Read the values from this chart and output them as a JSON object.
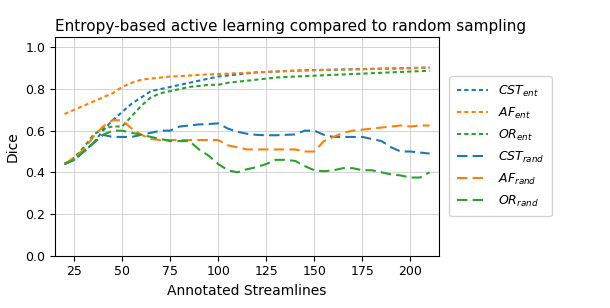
{
  "title": "Entropy-based active learning compared to random sampling",
  "xlabel": "Annotated Streamlines",
  "ylabel": "Dice",
  "xlim": [
    15,
    215
  ],
  "ylim": [
    0.0,
    1.05
  ],
  "xticks": [
    25,
    50,
    75,
    100,
    125,
    150,
    175,
    200
  ],
  "yticks": [
    0.0,
    0.2,
    0.4,
    0.6,
    0.8,
    1.0
  ],
  "x": [
    20,
    25,
    30,
    35,
    40,
    45,
    50,
    55,
    60,
    65,
    70,
    75,
    80,
    85,
    90,
    95,
    100,
    105,
    110,
    115,
    120,
    125,
    130,
    135,
    140,
    145,
    150,
    155,
    160,
    165,
    170,
    175,
    180,
    185,
    190,
    195,
    200,
    205,
    210
  ],
  "CST_ent": [
    0.44,
    0.46,
    0.5,
    0.54,
    0.6,
    0.65,
    0.69,
    0.73,
    0.76,
    0.79,
    0.8,
    0.81,
    0.82,
    0.83,
    0.84,
    0.85,
    0.86,
    0.865,
    0.87,
    0.875,
    0.88,
    0.882,
    0.884,
    0.886,
    0.888,
    0.89,
    0.891,
    0.892,
    0.893,
    0.894,
    0.895,
    0.896,
    0.897,
    0.898,
    0.899,
    0.9,
    0.901,
    0.902,
    0.904
  ],
  "AF_ent": [
    0.68,
    0.7,
    0.72,
    0.74,
    0.76,
    0.78,
    0.81,
    0.83,
    0.845,
    0.85,
    0.855,
    0.86,
    0.862,
    0.865,
    0.868,
    0.87,
    0.872,
    0.874,
    0.876,
    0.878,
    0.88,
    0.882,
    0.884,
    0.886,
    0.888,
    0.889,
    0.89,
    0.891,
    0.892,
    0.893,
    0.894,
    0.895,
    0.896,
    0.897,
    0.898,
    0.899,
    0.9,
    0.901,
    0.902
  ],
  "OR_ent": [
    0.44,
    0.47,
    0.52,
    0.58,
    0.61,
    0.62,
    0.62,
    0.67,
    0.72,
    0.76,
    0.78,
    0.79,
    0.8,
    0.81,
    0.815,
    0.82,
    0.82,
    0.83,
    0.835,
    0.84,
    0.845,
    0.85,
    0.855,
    0.858,
    0.86,
    0.862,
    0.864,
    0.866,
    0.868,
    0.87,
    0.872,
    0.874,
    0.876,
    0.878,
    0.88,
    0.882,
    0.884,
    0.886,
    0.888
  ],
  "CST_rand": [
    0.44,
    0.46,
    0.5,
    0.54,
    0.58,
    0.57,
    0.57,
    0.57,
    0.58,
    0.59,
    0.6,
    0.6,
    0.62,
    0.625,
    0.63,
    0.632,
    0.635,
    0.61,
    0.595,
    0.585,
    0.58,
    0.578,
    0.578,
    0.58,
    0.582,
    0.6,
    0.6,
    0.58,
    0.57,
    0.57,
    0.57,
    0.57,
    0.56,
    0.55,
    0.52,
    0.5,
    0.5,
    0.495,
    0.49
  ],
  "AF_rand": [
    0.44,
    0.47,
    0.51,
    0.57,
    0.62,
    0.65,
    0.65,
    0.61,
    0.58,
    0.56,
    0.555,
    0.555,
    0.555,
    0.555,
    0.555,
    0.555,
    0.555,
    0.53,
    0.52,
    0.51,
    0.51,
    0.51,
    0.51,
    0.51,
    0.51,
    0.5,
    0.5,
    0.55,
    0.57,
    0.59,
    0.6,
    0.605,
    0.61,
    0.615,
    0.62,
    0.625,
    0.62,
    0.625,
    0.625
  ],
  "OR_rand": [
    0.44,
    0.46,
    0.5,
    0.54,
    0.58,
    0.6,
    0.6,
    0.59,
    0.58,
    0.57,
    0.56,
    0.55,
    0.55,
    0.55,
    0.51,
    0.48,
    0.44,
    0.41,
    0.4,
    0.415,
    0.425,
    0.44,
    0.46,
    0.46,
    0.455,
    0.43,
    0.41,
    0.405,
    0.41,
    0.42,
    0.42,
    0.41,
    0.41,
    0.4,
    0.39,
    0.385,
    0.375,
    0.375,
    0.4
  ],
  "color_blue": "#1f77b4",
  "color_orange": "#ff7f0e",
  "color_green": "#2ca02c",
  "title_fontsize": 11,
  "label_fontsize": 10,
  "tick_fontsize": 9,
  "legend_fontsize": 9
}
